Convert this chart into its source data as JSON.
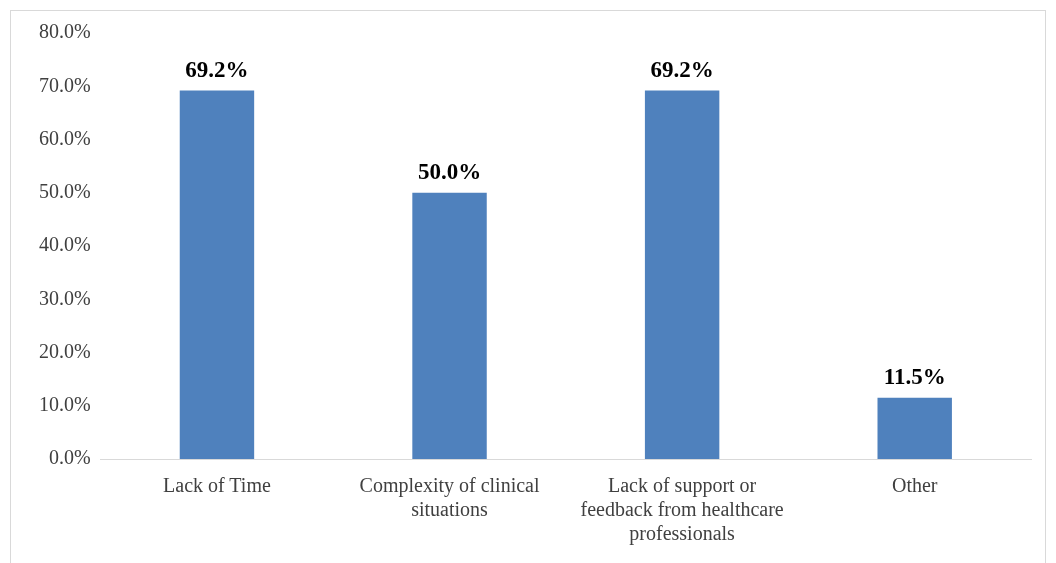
{
  "chart_data": {
    "type": "bar",
    "categories": [
      "Lack of Time",
      "Complexity of clinical situations",
      "Lack of support or feedback from healthcare professionals",
      "Other"
    ],
    "values": [
      69.2,
      50.0,
      69.2,
      11.5
    ],
    "color": "#4f81bd",
    "value_labels": [
      "69.2%",
      "50.0%",
      "69.2%",
      "11.5%"
    ],
    "ylim": [
      0,
      80
    ],
    "yticks": [
      {
        "value": 0,
        "label": "0.0%"
      },
      {
        "value": 10,
        "label": "10.0%"
      },
      {
        "value": 20,
        "label": "20.0%"
      },
      {
        "value": 30,
        "label": "30.0%"
      },
      {
        "value": 40,
        "label": "40.0%"
      },
      {
        "value": 50,
        "label": "50.0%"
      },
      {
        "value": 60,
        "label": "60.0%"
      },
      {
        "value": 70,
        "label": "70.0%"
      },
      {
        "value": 80,
        "label": "80.0%"
      }
    ],
    "grid": false,
    "legend": false
  }
}
